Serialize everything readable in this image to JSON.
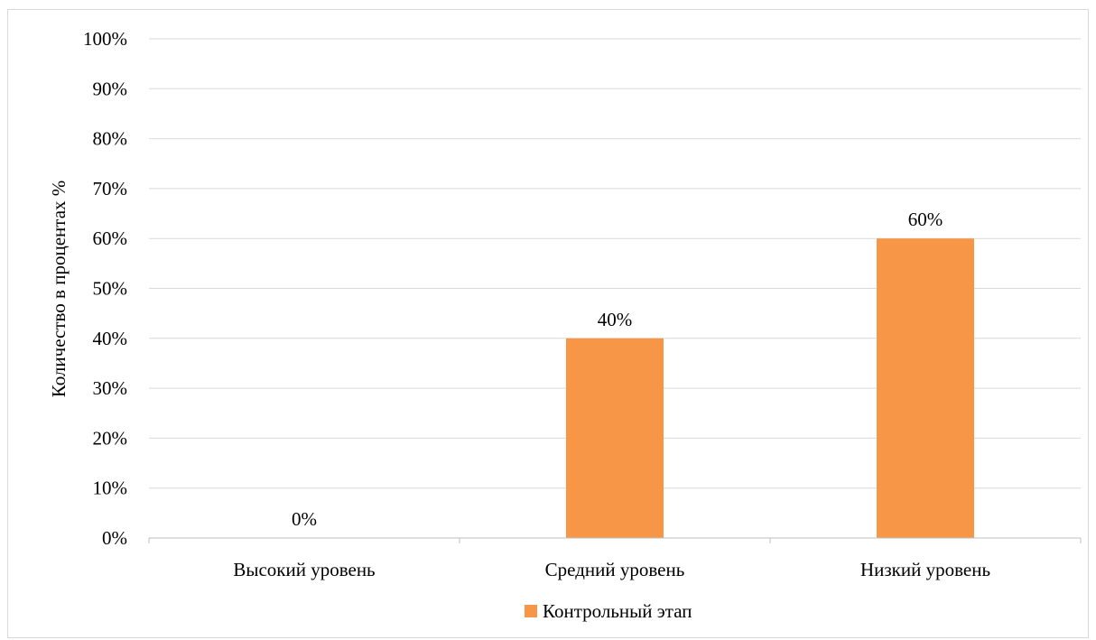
{
  "chart_data": {
    "type": "bar",
    "title": "",
    "xlabel": "",
    "ylabel": "Количество в процентах %",
    "categories": [
      "Высокий уровень",
      "Средний уровень",
      "Низкий уровень"
    ],
    "series": [
      {
        "name": "Контрольный этап",
        "values": [
          0,
          40,
          60
        ],
        "labels": [
          "0%",
          "40%",
          "60%"
        ],
        "color": "#f79646"
      }
    ],
    "ylim": [
      0,
      100
    ],
    "yticks": [
      0,
      10,
      20,
      30,
      40,
      50,
      60,
      70,
      80,
      90,
      100
    ],
    "ytick_labels": [
      "0%",
      "10%",
      "20%",
      "30%",
      "40%",
      "50%",
      "60%",
      "70%",
      "80%",
      "90%",
      "100%"
    ],
    "grid": true,
    "legend_position": "bottom"
  }
}
